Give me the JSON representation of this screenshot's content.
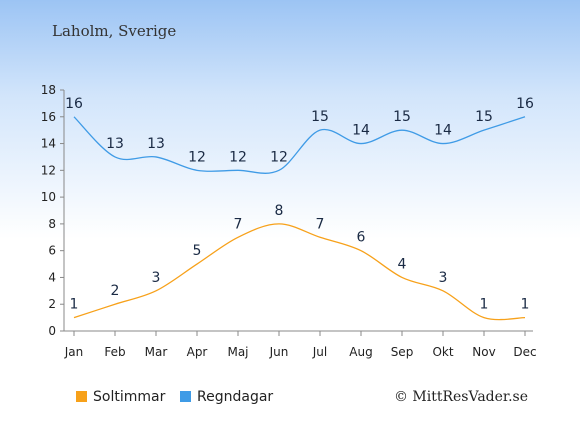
{
  "location": "Laholm, Sverige",
  "credit": "© MittResVader.se",
  "colors": {
    "sun": "#f7a11a",
    "rain": "#3f9be6",
    "axis": "#888888",
    "text": "#222222"
  },
  "chart_data": {
    "type": "line",
    "categories": [
      "Jan",
      "Feb",
      "Mar",
      "Apr",
      "Maj",
      "Jun",
      "Jul",
      "Aug",
      "Sep",
      "Okt",
      "Nov",
      "Dec"
    ],
    "yticks": [
      0,
      2,
      4,
      6,
      8,
      10,
      12,
      14,
      16,
      18
    ],
    "ylim": [
      0,
      18
    ],
    "grid": false,
    "legend_position": "bottom-left",
    "series": [
      {
        "name": "Soltimmar",
        "color": "#f7a11a",
        "values": [
          1,
          2,
          3,
          5,
          7,
          8,
          7,
          6,
          4,
          3,
          1,
          1
        ]
      },
      {
        "name": "Regndagar",
        "color": "#3f9be6",
        "values": [
          16,
          13,
          13,
          12,
          12,
          12,
          15,
          14,
          15,
          14,
          15,
          16
        ]
      }
    ]
  }
}
